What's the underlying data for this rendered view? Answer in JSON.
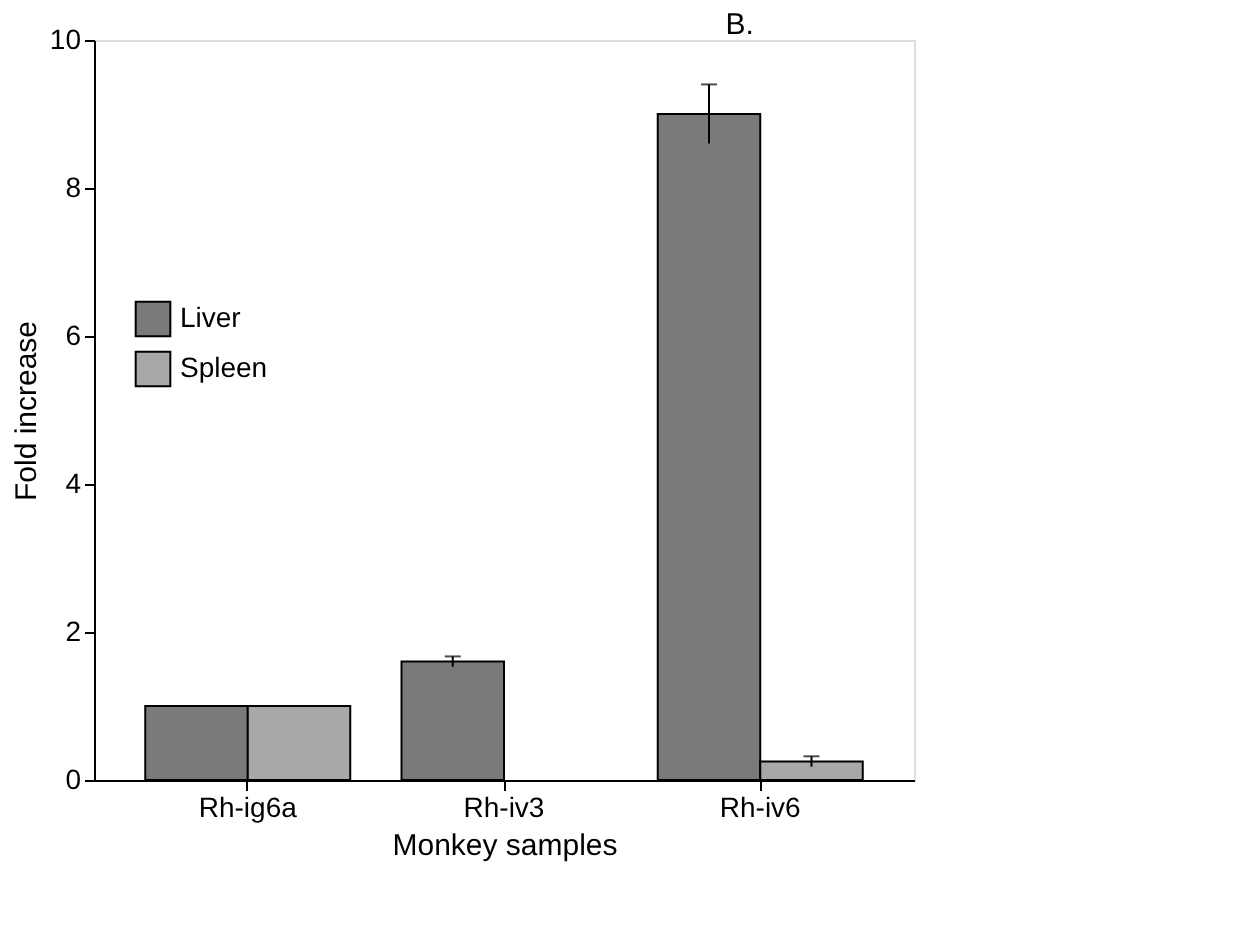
{
  "chart_data": {
    "type": "bar",
    "xlabel": "Monkey samples",
    "ylabel": "Fold increase",
    "categories": [
      "Rh-ig6a",
      "Rh-iv3",
      "Rh-iv6"
    ],
    "series": [
      {
        "name": "Liver",
        "color": "#7a7a7a",
        "values": [
          1.0,
          1.6,
          9.0
        ],
        "errors": [
          null,
          0.07,
          0.4
        ]
      },
      {
        "name": "Spleen",
        "color": "#a8a8a8",
        "values": [
          1.0,
          null,
          0.25
        ],
        "errors": [
          null,
          null,
          0.07
        ]
      }
    ],
    "ylim": [
      0,
      10
    ],
    "yticks": [
      0,
      2,
      4,
      6,
      8,
      10
    ],
    "grid": false,
    "legend": "left",
    "annotations": [
      "B."
    ]
  }
}
